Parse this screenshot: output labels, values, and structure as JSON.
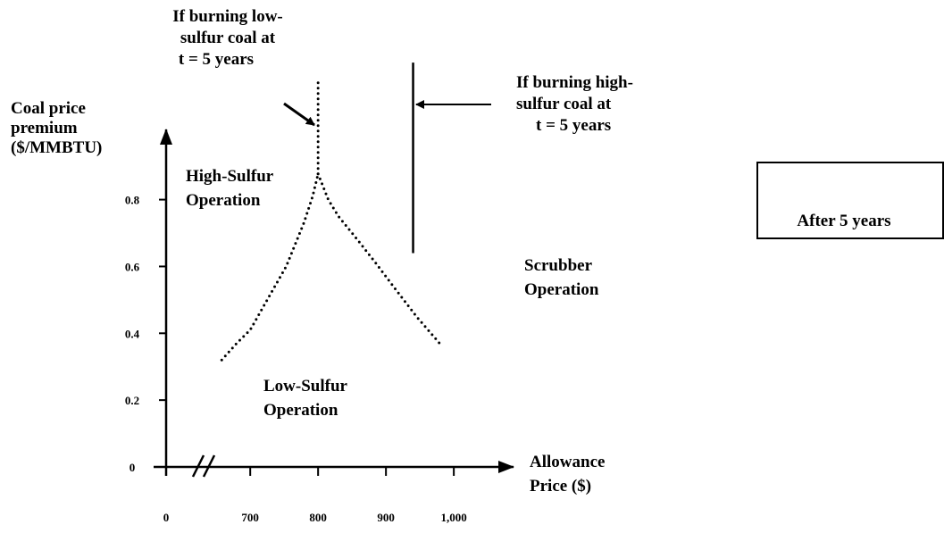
{
  "chart_data": {
    "type": "line",
    "x_axis_break": true,
    "xlim": [
      580,
      1088
    ],
    "ylim": [
      0,
      1.01
    ],
    "xticks": [
      0,
      700,
      800,
      900,
      {
        "value": 1000,
        "label": "1,000"
      }
    ],
    "yticks": [
      0,
      0.2,
      0.4,
      0.6,
      0.8
    ],
    "ylabel": [
      "Coal price",
      "premium",
      "($/MMBTU)"
    ],
    "xlabel": [
      "Allowance",
      "Price ($)"
    ],
    "series": [
      {
        "color": "#000000",
        "style": "dotted",
        "x": [
          658,
          680,
          700,
          725,
          753,
          779,
          792,
          800
        ],
        "values": [
          0.32,
          0.37,
          0.41,
          0.5,
          0.6,
          0.73,
          0.81,
          0.877
        ]
      },
      {
        "color": "#000000",
        "style": "dotted",
        "x": [
          800,
          815,
          830,
          858,
          885,
          911,
          945,
          979
        ],
        "values": [
          0.877,
          0.8,
          0.75,
          0.68,
          0.61,
          0.54,
          0.45,
          0.37
        ]
      },
      {
        "color": "#000000",
        "style": "dotted",
        "x": [
          800,
          800
        ],
        "values": [
          0.877,
          1.16
        ]
      },
      {
        "color": "#000000",
        "style": "solid",
        "x": [
          940,
          940
        ],
        "values": [
          0.64,
          1.21
        ]
      }
    ],
    "annotations": [
      {
        "lines": [
          "If burning low-",
          "sulfur coal at",
          "t = 5 years"
        ]
      },
      {
        "lines": [
          "If burning high-",
          "sulfur coal at",
          "t = 5 years"
        ]
      },
      {
        "lines": [
          "High-Sulfur",
          "Operation"
        ]
      },
      {
        "lines": [
          "Scrubber",
          "Operation"
        ]
      },
      {
        "lines": [
          "Low-Sulfur",
          "Operation"
        ]
      }
    ],
    "box_label": "After 5 years"
  }
}
